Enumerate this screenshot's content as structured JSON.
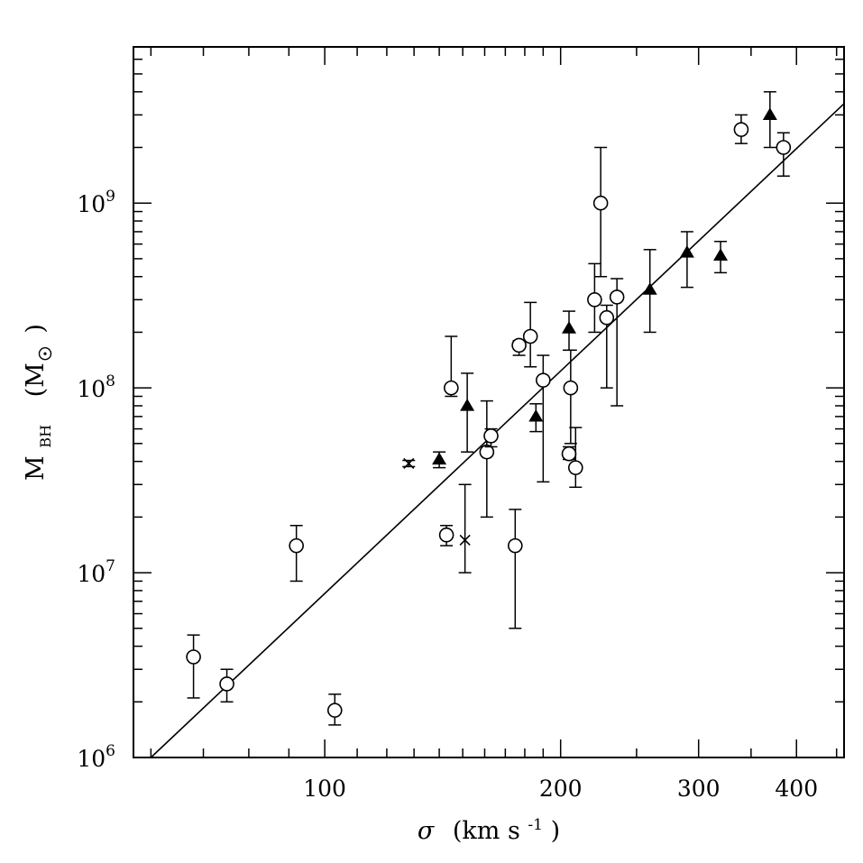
{
  "chart_data": {
    "type": "scatter",
    "title": "",
    "xlabel": {
      "sigma": "σ",
      "units": "(km s",
      "exp": "-1",
      "close": ")"
    },
    "ylabel": {
      "m": "M",
      "sub": "BH",
      "units": "(M",
      "close": ")"
    },
    "x_scale": "log",
    "y_scale": "log",
    "xlim": [
      57,
      460
    ],
    "ylim": [
      1000000,
      7000000000
    ],
    "x_ticklabels": [
      {
        "value": 100,
        "label": "100"
      },
      {
        "value": 200,
        "label": "200"
      },
      {
        "value": 300,
        "label": "300"
      },
      {
        "value": 400,
        "label": "400"
      }
    ],
    "y_ticklabels": [
      {
        "value": 1000000,
        "base": "10",
        "exp": "6"
      },
      {
        "value": 10000000,
        "base": "10",
        "exp": "7"
      },
      {
        "value": 100000000,
        "base": "10",
        "exp": "8"
      },
      {
        "value": 1000000000,
        "base": "10",
        "exp": "9"
      }
    ],
    "grid": false,
    "series": [
      {
        "marker": "open-circle",
        "points": [
          {
            "x": 68,
            "y": 3500000,
            "ylo": 2100000,
            "yhi": 4600000
          },
          {
            "x": 75,
            "y": 2500000,
            "ylo": 2000000,
            "yhi": 3000000
          },
          {
            "x": 92,
            "y": 14000000,
            "ylo": 9000000,
            "yhi": 18000000
          },
          {
            "x": 103,
            "y": 1800000,
            "ylo": 1500000,
            "yhi": 2200000
          },
          {
            "x": 143,
            "y": 16000000,
            "ylo": 14000000,
            "yhi": 18000000
          },
          {
            "x": 145,
            "y": 100000000,
            "ylo": 90000000,
            "yhi": 190000000
          },
          {
            "x": 161,
            "y": 45000000,
            "ylo": 20000000,
            "yhi": 85000000
          },
          {
            "x": 163,
            "y": 55000000,
            "ylo": 48000000,
            "yhi": 60000000
          },
          {
            "x": 175,
            "y": 14000000,
            "ylo": 5000000,
            "yhi": 22000000
          },
          {
            "x": 177,
            "y": 170000000,
            "ylo": 150000000,
            "yhi": 180000000
          },
          {
            "x": 183,
            "y": 190000000,
            "ylo": 130000000,
            "yhi": 290000000
          },
          {
            "x": 190,
            "y": 110000000,
            "ylo": 31000000,
            "yhi": 150000000
          },
          {
            "x": 205,
            "y": 44000000,
            "ylo": 41000000,
            "yhi": 48000000
          },
          {
            "x": 206,
            "y": 100000000,
            "ylo": 50000000,
            "yhi": 160000000
          },
          {
            "x": 209,
            "y": 37000000,
            "ylo": 29000000,
            "yhi": 61000000
          },
          {
            "x": 221,
            "y": 300000000,
            "ylo": 200000000,
            "yhi": 470000000
          },
          {
            "x": 225,
            "y": 1000000000,
            "ylo": 400000000,
            "yhi": 2000000000
          },
          {
            "x": 229,
            "y": 240000000,
            "ylo": 100000000,
            "yhi": 280000000
          },
          {
            "x": 236,
            "y": 310000000,
            "ylo": 80000000,
            "yhi": 390000000
          },
          {
            "x": 340,
            "y": 2500000000,
            "ylo": 2100000000,
            "yhi": 3000000000
          },
          {
            "x": 385,
            "y": 2000000000,
            "ylo": 1400000000,
            "yhi": 2400000000
          }
        ]
      },
      {
        "marker": "filled-triangle",
        "points": [
          {
            "x": 140,
            "y": 41000000,
            "ylo": 37000000,
            "yhi": 45000000
          },
          {
            "x": 152,
            "y": 80000000,
            "ylo": 45000000,
            "yhi": 120000000
          },
          {
            "x": 186,
            "y": 70000000,
            "ylo": 58000000,
            "yhi": 82000000
          },
          {
            "x": 205,
            "y": 210000000,
            "ylo": 160000000,
            "yhi": 260000000
          },
          {
            "x": 260,
            "y": 340000000,
            "ylo": 200000000,
            "yhi": 560000000
          },
          {
            "x": 290,
            "y": 540000000,
            "ylo": 350000000,
            "yhi": 700000000
          },
          {
            "x": 320,
            "y": 520000000,
            "ylo": 420000000,
            "yhi": 620000000
          },
          {
            "x": 370,
            "y": 3000000000,
            "ylo": 2000000000,
            "yhi": 4000000000
          }
        ]
      },
      {
        "marker": "cross",
        "points": [
          {
            "x": 128,
            "y": 39000000,
            "ylo": 37500000,
            "yhi": 40500000
          },
          {
            "x": 151,
            "y": 15000000,
            "ylo": 10000000,
            "yhi": 30000000
          }
        ]
      }
    ],
    "fit_line": {
      "x": [
        60,
        460
      ],
      "y": [
        1000000,
        3450000000
      ]
    }
  }
}
